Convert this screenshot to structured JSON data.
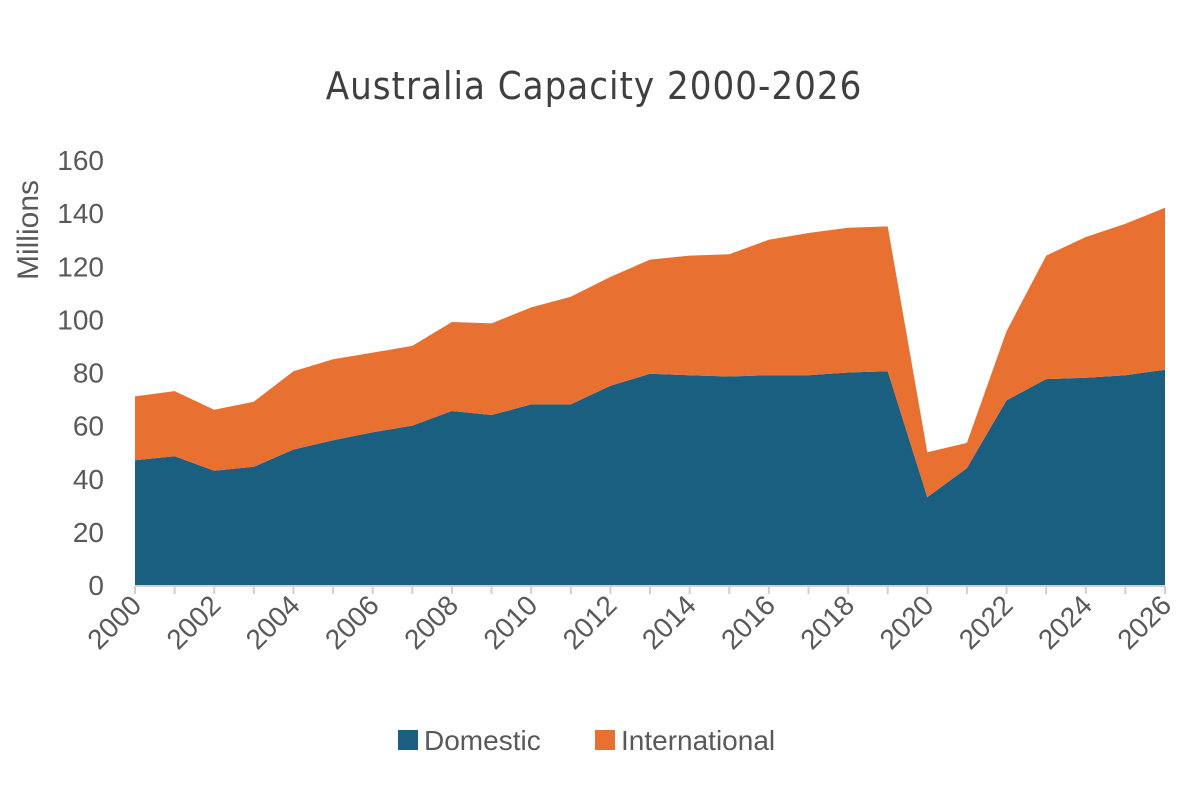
{
  "chart_data": {
    "type": "area",
    "stacked": true,
    "title": "Australia Capacity 2000-2026",
    "ylabel": "Millions",
    "xlabel": "",
    "ylim": [
      0,
      160
    ],
    "yticks": [
      0,
      20,
      40,
      60,
      80,
      100,
      120,
      140,
      160
    ],
    "x": [
      2000,
      2001,
      2002,
      2003,
      2004,
      2005,
      2006,
      2007,
      2008,
      2009,
      2010,
      2011,
      2012,
      2013,
      2014,
      2015,
      2016,
      2017,
      2018,
      2019,
      2020,
      2021,
      2022,
      2023,
      2024,
      2025,
      2026
    ],
    "xticks": [
      "2000",
      "2002",
      "2004",
      "2006",
      "2008",
      "2010",
      "2012",
      "2014",
      "2016",
      "2018",
      "2020",
      "2022",
      "2024",
      "2026"
    ],
    "series": [
      {
        "name": "Domestic",
        "color": "#1a5e80",
        "values": [
          47,
          48.5,
          43,
          44.5,
          51,
          54.5,
          57.5,
          60,
          65.5,
          64,
          68,
          68,
          75,
          79.5,
          79,
          78.5,
          79,
          79,
          80,
          80.5,
          33,
          44,
          69.5,
          77.5,
          78,
          79,
          81
        ]
      },
      {
        "name": "International",
        "color": "#e87031",
        "values": [
          24,
          24.5,
          23,
          24.5,
          29.5,
          30.5,
          30,
          30,
          33.5,
          34.5,
          36.5,
          40.5,
          41,
          43,
          45,
          46,
          51,
          53.5,
          54.5,
          54.5,
          17,
          9.5,
          26,
          46.5,
          53,
          57,
          61
        ]
      }
    ],
    "legend_position": "bottom",
    "grid": false
  }
}
